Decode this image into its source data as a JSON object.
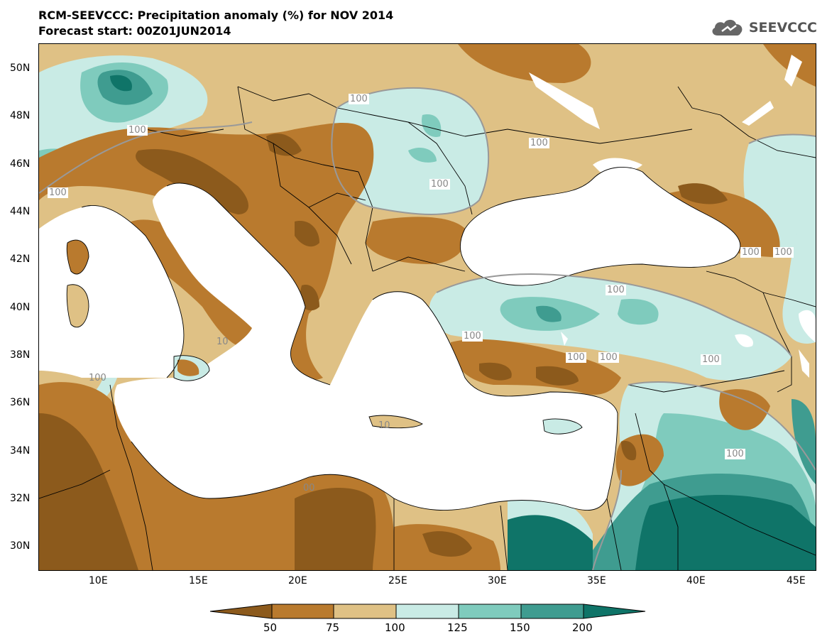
{
  "header": {
    "title": "RCM-SEEVCCC: Precipitation anomaly (%) for NOV 2014",
    "subtitle": "Forecast start: 00Z01JUN2014",
    "logo_text": "SEEVCCC"
  },
  "map": {
    "lat_labels": [
      "50N",
      "48N",
      "46N",
      "44N",
      "42N",
      "40N",
      "38N",
      "36N",
      "34N",
      "32N",
      "30N"
    ],
    "lon_labels": [
      "10E",
      "15E",
      "20E",
      "25E",
      "30E",
      "35E",
      "40E",
      "45E"
    ],
    "contour_labels": [
      "100",
      "100",
      "100",
      "100",
      "100",
      "100",
      "100",
      "100",
      "100",
      "100",
      "100",
      "100",
      "100",
      "100",
      "10",
      "10",
      "00"
    ]
  },
  "legend": {
    "ticks": [
      "50",
      "75",
      "100",
      "125",
      "150",
      "200"
    ],
    "colors": {
      "lt50": "#8c5a1c",
      "c50_75": "#b97a2e",
      "c75_100": "#dfc185",
      "c100_125": "#c9ebe5",
      "c125_150": "#7fcbbd",
      "c150_200": "#3f9c90",
      "gt200": "#0f7468"
    }
  }
}
